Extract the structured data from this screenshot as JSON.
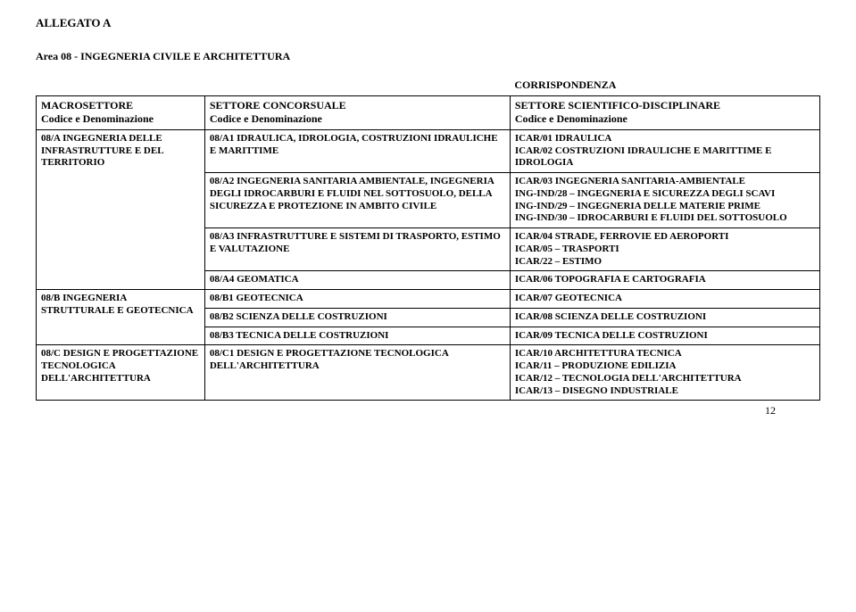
{
  "allegato": "ALLEGATO A",
  "area": "Area 08 - INGEGNERIA CIVILE E ARCHITETTURA",
  "corr": "CORRISPONDENZA",
  "headers": {
    "col1a": "MACROSETTORE",
    "col1b": "Codice e Denominazione",
    "col2a": "SETTORE CONCORSUALE",
    "col2b": "Codice e Denominazione",
    "col3a": "SETTORE SCIENTIFICO-DISCIPLINARE",
    "col3b": "Codice e Denominazione"
  },
  "rows": {
    "r0": {
      "c1": "08/A INGEGNERIA DELLE INFRASTRUTTURE E DEL TERRITORIO",
      "c2": "08/A1 IDRAULICA, IDROLOGIA, COSTRUZIONI IDRAULICHE E MARITTIME",
      "c3": "ICAR/01 IDRAULICA\nICAR/02 COSTRUZIONI IDRAULICHE E MARITTIME E IDROLOGIA"
    },
    "r1": {
      "c2": "08/A2 INGEGNERIA SANITARIA AMBIENTALE, INGEGNERIA DEGLI IDROCARBURI E FLUIDI NEL SOTTOSUOLO, DELLA SICUREZZA E PROTEZIONE IN AMBITO CIVILE",
      "c3": "ICAR/03 INGEGNERIA SANITARIA-AMBIENTALE\nING-IND/28 – INGEGNERIA E SICUREZZA DEGLI SCAVI\nING-IND/29 – INGEGNERIA DELLE MATERIE PRIME\nING-IND/30 – IDROCARBURI E FLUIDI DEL SOTTOSUOLO"
    },
    "r2": {
      "c2": "08/A3 INFRASTRUTTURE E SISTEMI DI TRASPORTO, ESTIMO E VALUTAZIONE",
      "c3": "ICAR/04 STRADE, FERROVIE ED AEROPORTI\nICAR/05 – TRASPORTI\nICAR/22 – ESTIMO"
    },
    "r3": {
      "c2": "08/A4 GEOMATICA",
      "c3": "ICAR/06 TOPOGRAFIA E CARTOGRAFIA"
    },
    "r4": {
      "c1": "08/B INGEGNERIA STRUTTURALE E GEOTECNICA",
      "c2": "08/B1 GEOTECNICA",
      "c3": "ICAR/07 GEOTECNICA"
    },
    "r5": {
      "c2": "08/B2 SCIENZA DELLE COSTRUZIONI",
      "c3": "ICAR/08 SCIENZA DELLE COSTRUZIONI"
    },
    "r6": {
      "c2": "08/B3 TECNICA DELLE COSTRUZIONI",
      "c3": "ICAR/09 TECNICA DELLE COSTRUZIONI"
    },
    "r7": {
      "c1": "08/C  DESIGN E PROGETTAZIONE TECNOLOGICA DELL'ARCHITETTURA",
      "c2": "08/C1 DESIGN E PROGETTAZIONE TECNOLOGICA DELL'ARCHITETTURA",
      "c3": "ICAR/10 ARCHITETTURA TECNICA\nICAR/11 – PRODUZIONE EDILIZIA\nICAR/12 – TECNOLOGIA DELL'ARCHITETTURA\nICAR/13 – DISEGNO INDUSTRIALE"
    }
  },
  "pagenum": "12",
  "styles": {
    "border_color": "#000000",
    "bg": "#ffffff",
    "font": "Times New Roman",
    "cell_fontsize": 11,
    "hdr_fontsize": 12
  }
}
